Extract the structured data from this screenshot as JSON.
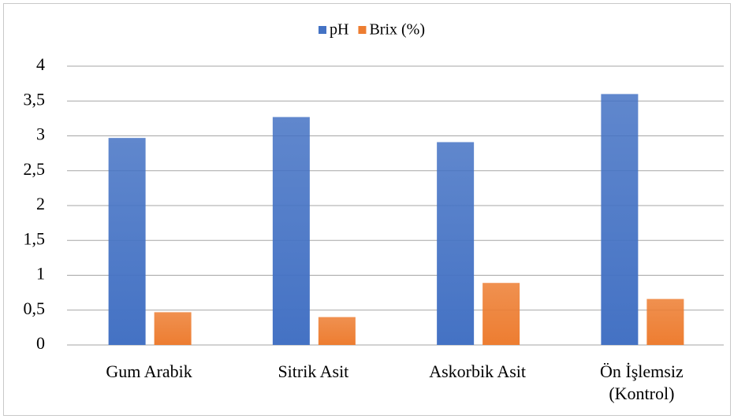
{
  "chart_data": {
    "type": "bar",
    "categories": [
      "Gum Arabik",
      "Sitrik Asit",
      "Askorbik Asit",
      "Ön İşlemsiz (Kontrol)"
    ],
    "series": [
      {
        "name": "pH",
        "color": "#4472c4",
        "values": [
          2.97,
          3.27,
          2.91,
          3.6
        ]
      },
      {
        "name": "Brix (%)",
        "color": "#ed7d31",
        "values": [
          0.47,
          0.4,
          0.89,
          0.66
        ]
      }
    ],
    "ylim": [
      0,
      4
    ],
    "yticks": [
      0,
      {
        "value": 0.5,
        "label": "0,5"
      },
      1,
      {
        "value": 1.5,
        "label": "1,5"
      },
      2,
      {
        "value": 2.5,
        "label": "2,5"
      },
      3,
      {
        "value": 3.5,
        "label": "3,5"
      },
      4
    ],
    "grid": true,
    "legend": "top"
  }
}
